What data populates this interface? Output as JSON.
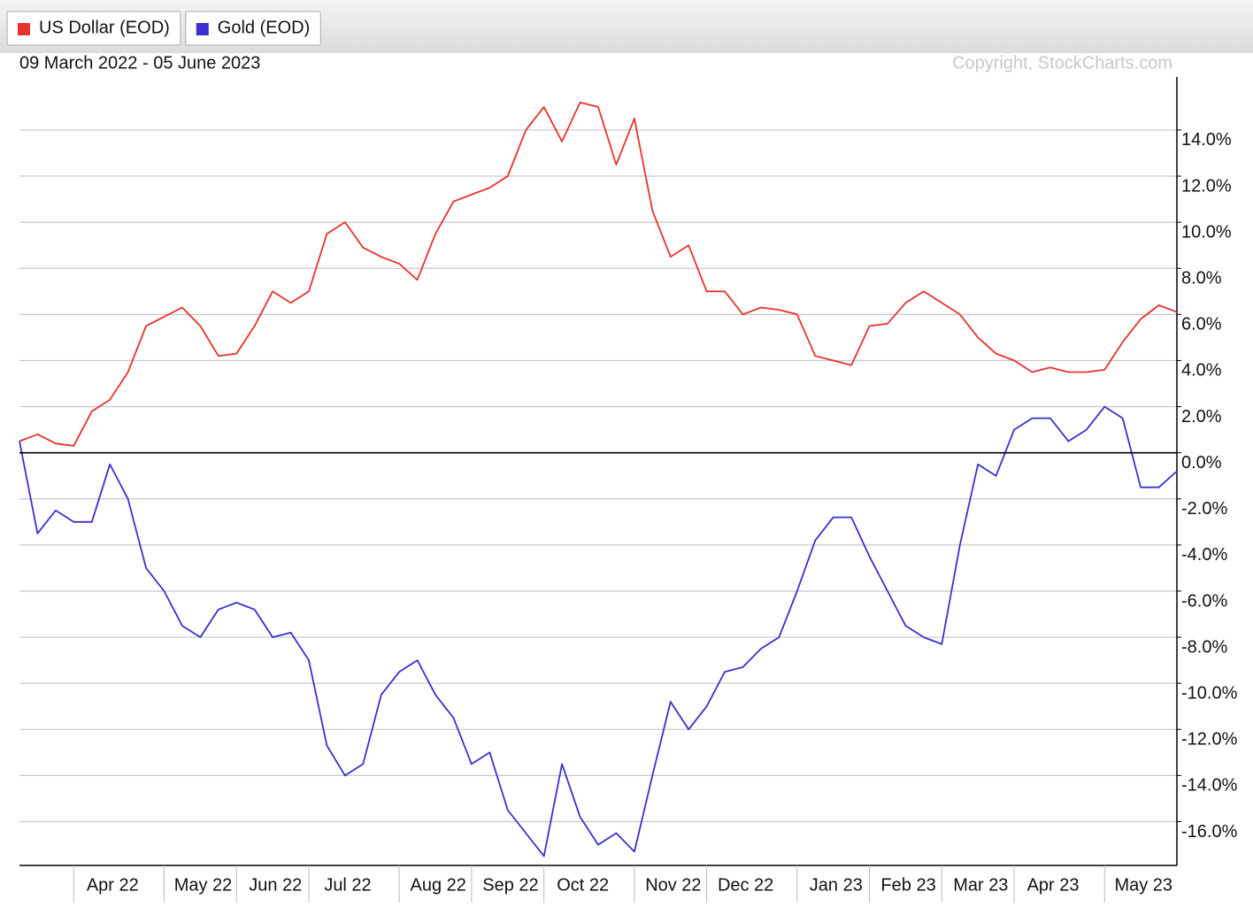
{
  "chart_data": {
    "type": "line",
    "subtitle": "09 March 2022 - 05 June 2023",
    "source": "Copyright, StockCharts.com",
    "categories": [
      null,
      null,
      null,
      "Apr 22",
      null,
      null,
      null,
      null,
      "May 22",
      null,
      null,
      null,
      "Jun 22",
      null,
      null,
      null,
      "Jul 22",
      null,
      null,
      null,
      null,
      "Aug 22",
      null,
      null,
      null,
      "Sep 22",
      null,
      null,
      null,
      "Oct 22",
      null,
      null,
      null,
      null,
      "Nov 22",
      null,
      null,
      null,
      "Dec 22",
      null,
      null,
      null,
      null,
      "Jan 23",
      null,
      null,
      null,
      "Feb 23",
      null,
      null,
      null,
      "Mar 23",
      null,
      null,
      null,
      "Apr 23",
      null,
      null,
      null,
      null,
      "May 23",
      null,
      null,
      null,
      null
    ],
    "series": [
      {
        "name": "US Dollar (EOD)",
        "color": "#e8322b",
        "values": [
          0.5,
          0.8,
          0.4,
          0.3,
          1.8,
          2.3,
          3.5,
          5.5,
          5.9,
          6.3,
          5.5,
          4.2,
          4.3,
          5.5,
          7.0,
          6.5,
          7.0,
          9.5,
          10.0,
          8.9,
          8.5,
          8.2,
          7.5,
          9.5,
          10.9,
          11.2,
          11.5,
          12.0,
          14.0,
          15.0,
          13.5,
          15.2,
          15.0,
          12.5,
          14.5,
          10.5,
          8.5,
          9.0,
          7.0,
          7.0,
          6.0,
          6.3,
          6.2,
          6.0,
          4.2,
          4.0,
          3.8,
          5.5,
          5.6,
          6.5,
          7.0,
          6.5,
          6.0,
          5.0,
          4.3,
          4.0,
          3.5,
          3.7,
          3.5,
          3.5,
          3.6,
          4.8,
          5.8,
          6.4,
          6.1
        ]
      },
      {
        "name": "Gold (EOD)",
        "color": "#3a2fd0",
        "values": [
          0.5,
          -3.5,
          -2.5,
          -3.0,
          -3.0,
          -0.5,
          -2.0,
          -5.0,
          -6.0,
          -7.5,
          -8.0,
          -6.8,
          -6.5,
          -6.8,
          -8.0,
          -7.8,
          -9.0,
          -12.7,
          -14.0,
          -13.5,
          -10.5,
          -9.5,
          -9.0,
          -10.5,
          -11.5,
          -13.5,
          -13.0,
          -15.5,
          -16.5,
          -17.5,
          -13.5,
          -15.8,
          -17.0,
          -16.5,
          -17.3,
          -14.0,
          -10.8,
          -12.0,
          -11.0,
          -9.5,
          -9.3,
          -8.5,
          -8.0,
          -6.0,
          -3.8,
          -2.8,
          -2.8,
          -4.5,
          -6.0,
          -7.5,
          -8.0,
          -8.3,
          -4.0,
          -0.5,
          -1.0,
          1.0,
          1.5,
          1.5,
          0.5,
          1.0,
          2.0,
          1.5,
          -1.5,
          -1.5,
          -0.8
        ]
      }
    ],
    "ylim": [
      -17.9,
      16.3
    ],
    "yticks": [
      {
        "value": -16,
        "label": "-16.0%"
      },
      {
        "value": -14,
        "label": "-14.0%"
      },
      {
        "value": -12,
        "label": "-12.0%"
      },
      {
        "value": -10,
        "label": "-10.0%"
      },
      {
        "value": -8,
        "label": "-8.0%"
      },
      {
        "value": -6,
        "label": "-6.0%"
      },
      {
        "value": -4,
        "label": "-4.0%"
      },
      {
        "value": -2,
        "label": "-2.0%"
      },
      {
        "value": 0,
        "label": "0.0%"
      },
      {
        "value": 2,
        "label": "2.0%"
      },
      {
        "value": 4,
        "label": "4.0%"
      },
      {
        "value": 6,
        "label": "6.0%"
      },
      {
        "value": 8,
        "label": "8.0%"
      },
      {
        "value": 10,
        "label": "10.0%"
      },
      {
        "value": 12,
        "label": "12.0%"
      },
      {
        "value": 14,
        "label": "14.0%"
      }
    ],
    "grid": true
  }
}
